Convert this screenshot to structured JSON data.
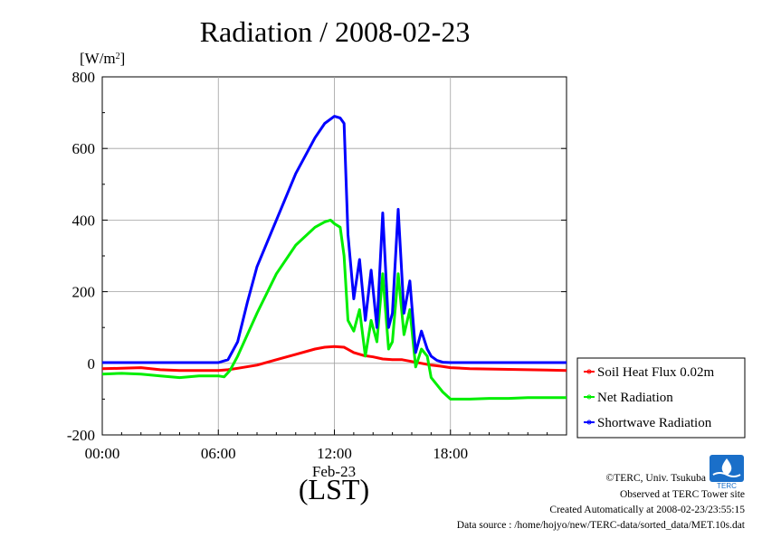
{
  "chart_data": {
    "type": "line",
    "title": "Radiation / 2008-02-23",
    "ylabel": "[W/m",
    "ylabel_sup": "2",
    "ylabel_close": "]",
    "xlabel": "(LST)",
    "x_date_label": "Feb-23",
    "ylim": [
      -200,
      800
    ],
    "xlim": [
      "00:00",
      "24:00"
    ],
    "y_ticks": [
      "800",
      "600",
      "400",
      "200",
      "0",
      "-200"
    ],
    "x_ticks": [
      "00:00",
      "06:00",
      "12:00",
      "18:00"
    ],
    "grid": true,
    "legend_position": "right-bottom",
    "x_unit": "hour",
    "series": [
      {
        "name": "Soil Heat Flux 0.02m",
        "color": "#ff0000",
        "x": [
          0,
          1,
          2,
          3,
          4,
          5,
          6,
          6.5,
          7,
          8,
          9,
          10,
          11,
          11.5,
          12,
          12.5,
          13,
          13.5,
          14,
          14.5,
          15,
          15.5,
          16,
          16.5,
          17,
          17.5,
          18,
          19,
          20,
          21,
          22,
          23,
          24
        ],
        "values": [
          -15,
          -14,
          -12,
          -18,
          -20,
          -20,
          -20,
          -18,
          -14,
          -5,
          10,
          25,
          40,
          45,
          47,
          45,
          30,
          22,
          18,
          12,
          10,
          10,
          5,
          0,
          -5,
          -8,
          -12,
          -15,
          -16,
          -17,
          -18,
          -19,
          -20
        ]
      },
      {
        "name": "Net Radiation",
        "color": "#00ee00",
        "x": [
          0,
          1,
          2,
          3,
          4,
          5,
          6,
          6.3,
          6.6,
          7,
          7.5,
          8,
          9,
          10,
          11,
          11.5,
          11.8,
          12,
          12.3,
          12.5,
          12.7,
          13,
          13.3,
          13.6,
          13.9,
          14.2,
          14.5,
          14.8,
          15,
          15.3,
          15.6,
          15.9,
          16.2,
          16.5,
          16.8,
          17,
          17.3,
          17.6,
          18,
          19,
          20,
          21,
          22,
          23,
          24
        ],
        "values": [
          -30,
          -28,
          -30,
          -35,
          -40,
          -35,
          -35,
          -38,
          -20,
          20,
          80,
          140,
          250,
          330,
          380,
          395,
          400,
          390,
          380,
          300,
          120,
          90,
          150,
          20,
          120,
          60,
          250,
          40,
          60,
          250,
          80,
          150,
          -10,
          40,
          20,
          -40,
          -60,
          -80,
          -100,
          -100,
          -98,
          -98,
          -96,
          -96,
          -96
        ]
      },
      {
        "name": "Shortwave Radiation",
        "color": "#0000ff",
        "x": [
          0,
          1,
          2,
          3,
          4,
          5,
          6,
          6.5,
          7,
          7.5,
          8,
          9,
          10,
          11,
          11.5,
          12,
          12.3,
          12.5,
          12.7,
          13,
          13.3,
          13.6,
          13.9,
          14.2,
          14.5,
          14.8,
          15,
          15.3,
          15.6,
          15.9,
          16.2,
          16.5,
          16.8,
          17,
          17.3,
          17.6,
          18,
          19,
          20,
          21,
          22,
          23,
          24
        ],
        "values": [
          2,
          2,
          2,
          2,
          2,
          2,
          2,
          10,
          60,
          170,
          270,
          400,
          530,
          630,
          670,
          690,
          685,
          670,
          360,
          180,
          290,
          120,
          260,
          100,
          420,
          100,
          140,
          430,
          140,
          230,
          30,
          90,
          40,
          20,
          8,
          3,
          2,
          2,
          2,
          2,
          2,
          2,
          2
        ]
      }
    ]
  },
  "credits": {
    "line1": "©TERC, Univ. Tsukuba",
    "line2": "Observed at TERC Tower site",
    "line3": "Created Automatically at 2008-02-23/23:55:15",
    "line4": "Data source : /home/hojyo/new/TERC-data/sorted_data/MET.10s.dat"
  },
  "logo": {
    "text": "TERC",
    "color": "#1a6fc9"
  }
}
